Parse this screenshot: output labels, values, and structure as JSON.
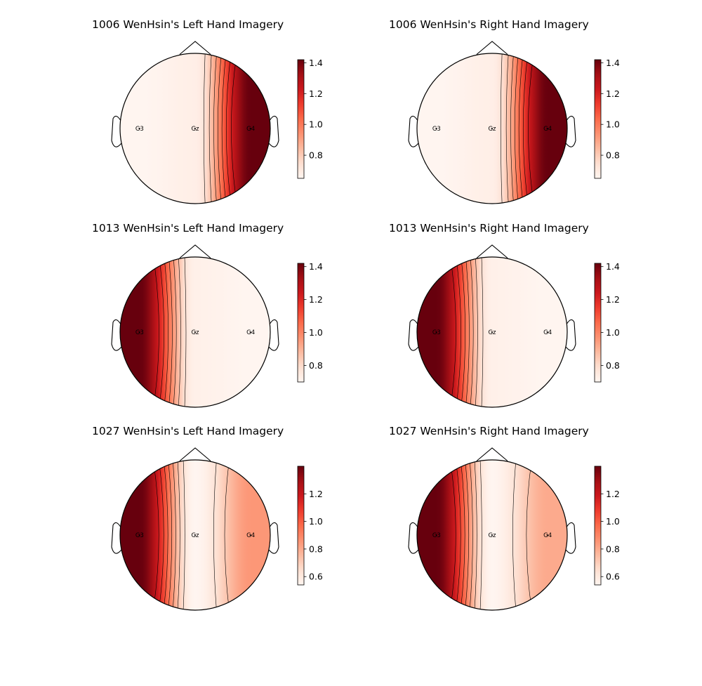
{
  "colors": {
    "low": "#fff5f0",
    "high": "#67000d",
    "colormap": "Reds"
  },
  "chart_data": [
    {
      "type": "heatmap",
      "title": "1006 WenHsin's Left Hand Imagery",
      "channels": [
        {
          "label": "G3",
          "value": 0.65
        },
        {
          "label": "Gz",
          "value": 0.68
        },
        {
          "label": "G4",
          "value": 1.42
        }
      ],
      "colorbar": {
        "range": [
          0.65,
          1.42
        ],
        "ticks": [
          0.8,
          1.0,
          1.2,
          1.4
        ],
        "tick_labels": [
          "0.8",
          "1.0",
          "1.2",
          "1.4"
        ]
      }
    },
    {
      "type": "heatmap",
      "title": "1006 WenHsin's Right Hand Imagery",
      "channels": [
        {
          "label": "G3",
          "value": 0.65
        },
        {
          "label": "Gz",
          "value": 0.68
        },
        {
          "label": "G4",
          "value": 1.42
        }
      ],
      "colorbar": {
        "range": [
          0.65,
          1.42
        ],
        "ticks": [
          0.8,
          1.0,
          1.2,
          1.4
        ],
        "tick_labels": [
          "0.8",
          "1.0",
          "1.2",
          "1.4"
        ]
      }
    },
    {
      "type": "heatmap",
      "title": "1013 WenHsin's Left Hand Imagery",
      "channels": [
        {
          "label": "G3",
          "value": 1.42
        },
        {
          "label": "Gz",
          "value": 0.72
        },
        {
          "label": "G4",
          "value": 0.7
        }
      ],
      "colorbar": {
        "range": [
          0.7,
          1.42
        ],
        "ticks": [
          0.8,
          1.0,
          1.2,
          1.4
        ],
        "tick_labels": [
          "0.8",
          "1.0",
          "1.2",
          "1.4"
        ]
      }
    },
    {
      "type": "heatmap",
      "title": "1013 WenHsin's Right Hand Imagery",
      "channels": [
        {
          "label": "G3",
          "value": 1.42
        },
        {
          "label": "Gz",
          "value": 0.72
        },
        {
          "label": "G4",
          "value": 0.7
        }
      ],
      "colorbar": {
        "range": [
          0.7,
          1.42
        ],
        "ticks": [
          0.8,
          1.0,
          1.2,
          1.4
        ],
        "tick_labels": [
          "0.8",
          "1.0",
          "1.2",
          "1.4"
        ]
      }
    },
    {
      "type": "heatmap",
      "title": "1027 WenHsin's Left Hand Imagery",
      "channels": [
        {
          "label": "G3",
          "value": 1.4
        },
        {
          "label": "Gz",
          "value": 0.54
        },
        {
          "label": "G4",
          "value": 0.85
        }
      ],
      "colorbar": {
        "range": [
          0.54,
          1.4
        ],
        "ticks": [
          0.6,
          0.8,
          1.0,
          1.2
        ],
        "tick_labels": [
          "0.6",
          "0.8",
          "1.0",
          "1.2"
        ]
      }
    },
    {
      "type": "heatmap",
      "title": "1027 WenHsin's Right Hand Imagery",
      "channels": [
        {
          "label": "G3",
          "value": 1.4
        },
        {
          "label": "Gz",
          "value": 0.54
        },
        {
          "label": "G4",
          "value": 0.8
        }
      ],
      "colorbar": {
        "range": [
          0.54,
          1.4
        ],
        "ticks": [
          0.6,
          0.8,
          1.0,
          1.2
        ],
        "tick_labels": [
          "0.6",
          "0.8",
          "1.0",
          "1.2"
        ]
      }
    }
  ]
}
